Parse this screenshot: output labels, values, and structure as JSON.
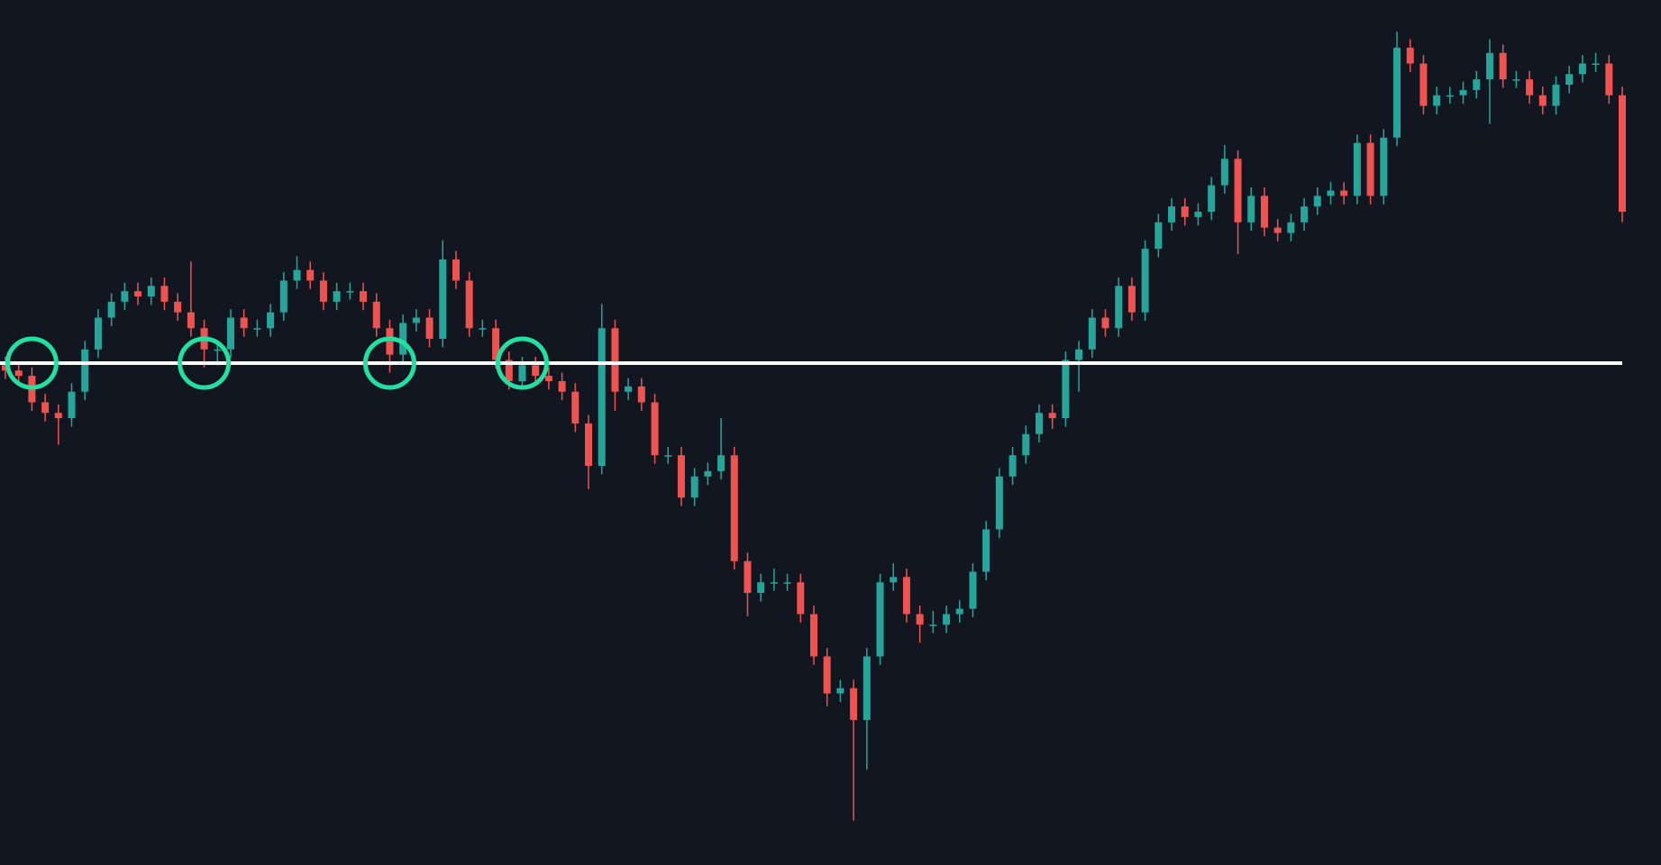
{
  "chart_data": {
    "type": "candlestick",
    "ylim": [
      0,
      817
    ],
    "up_color": "#26a69a",
    "down_color": "#ef5350",
    "level": 474,
    "level_color": "#ffffff",
    "circles": [
      2,
      15,
      29,
      39
    ],
    "circle_color": "#22e0a0",
    "open": [
      472,
      467,
      462,
      437,
      427,
      422,
      447,
      487,
      517,
      532,
      542,
      537,
      547,
      532,
      522,
      507,
      487,
      487,
      517,
      507,
      507,
      522,
      552,
      562,
      552,
      532,
      542,
      542,
      532,
      507,
      482,
      512,
      517,
      497,
      572,
      552,
      507,
      507,
      477,
      457,
      472,
      462,
      457,
      447,
      417,
      377,
      507,
      447,
      452,
      437,
      387,
      387,
      347,
      367,
      372,
      387,
      287,
      257,
      267,
      267,
      267,
      237,
      197,
      162,
      167,
      137,
      197,
      267,
      272,
      237,
      227,
      227,
      237,
      242,
      277,
      317,
      367,
      387,
      407,
      427,
      422,
      477,
      487,
      517,
      507,
      547,
      522,
      582,
      607,
      622,
      612,
      617,
      642,
      667,
      607,
      632,
      602,
      597,
      607,
      622,
      632,
      637,
      632,
      682,
      632,
      687,
      772,
      757,
      717,
      727,
      727,
      732,
      742,
      767,
      742,
      742,
      727,
      717,
      737,
      747,
      757,
      757,
      727
    ],
    "high": [
      480,
      475,
      470,
      445,
      435,
      455,
      495,
      525,
      540,
      550,
      550,
      555,
      555,
      540,
      570,
      515,
      495,
      525,
      525,
      515,
      530,
      560,
      575,
      570,
      560,
      550,
      550,
      550,
      540,
      515,
      520,
      525,
      525,
      590,
      580,
      560,
      515,
      515,
      485,
      480,
      480,
      470,
      465,
      455,
      425,
      530,
      515,
      460,
      460,
      445,
      395,
      395,
      375,
      380,
      422,
      395,
      295,
      275,
      280,
      275,
      275,
      245,
      205,
      175,
      175,
      205,
      275,
      285,
      280,
      245,
      240,
      245,
      250,
      285,
      325,
      375,
      395,
      415,
      435,
      435,
      485,
      495,
      525,
      525,
      555,
      555,
      590,
      615,
      630,
      630,
      625,
      650,
      680,
      675,
      640,
      640,
      610,
      615,
      630,
      640,
      645,
      645,
      690,
      690,
      695,
      787,
      780,
      765,
      735,
      735,
      740,
      750,
      780,
      775,
      750,
      750,
      735,
      745,
      755,
      765,
      767,
      765,
      735
    ],
    "low": [
      459,
      454,
      429,
      419,
      397,
      414,
      439,
      479,
      509,
      524,
      529,
      529,
      524,
      514,
      499,
      470,
      472,
      479,
      499,
      499,
      499,
      514,
      544,
      544,
      524,
      524,
      534,
      524,
      499,
      465,
      474,
      504,
      489,
      489,
      544,
      499,
      499,
      469,
      449,
      449,
      454,
      449,
      439,
      409,
      355,
      369,
      429,
      439,
      429,
      379,
      379,
      339,
      339,
      359,
      364,
      279,
      235,
      249,
      259,
      259,
      229,
      189,
      150,
      154,
      42,
      90,
      189,
      259,
      229,
      210,
      219,
      219,
      229,
      234,
      269,
      309,
      359,
      379,
      399,
      412,
      414,
      447,
      479,
      499,
      499,
      514,
      514,
      574,
      599,
      604,
      604,
      609,
      634,
      577,
      599,
      594,
      589,
      589,
      599,
      614,
      624,
      624,
      624,
      624,
      624,
      679,
      749,
      709,
      709,
      719,
      719,
      724,
      700,
      734,
      734,
      719,
      709,
      709,
      729,
      739,
      749,
      719,
      607
    ],
    "close": [
      467,
      462,
      437,
      427,
      422,
      447,
      487,
      517,
      532,
      542,
      537,
      547,
      532,
      522,
      507,
      487,
      487,
      517,
      507,
      507,
      522,
      552,
      562,
      552,
      532,
      542,
      542,
      532,
      507,
      482,
      512,
      517,
      497,
      572,
      552,
      507,
      507,
      477,
      457,
      472,
      462,
      457,
      447,
      417,
      377,
      507,
      447,
      452,
      437,
      387,
      387,
      347,
      367,
      372,
      387,
      287,
      257,
      267,
      267,
      267,
      237,
      197,
      162,
      167,
      137,
      197,
      267,
      272,
      237,
      227,
      227,
      237,
      242,
      277,
      317,
      367,
      387,
      407,
      427,
      422,
      477,
      487,
      517,
      507,
      547,
      522,
      582,
      607,
      622,
      612,
      617,
      642,
      667,
      607,
      632,
      602,
      597,
      607,
      622,
      632,
      637,
      632,
      682,
      632,
      687,
      772,
      757,
      717,
      727,
      727,
      732,
      742,
      767,
      742,
      742,
      727,
      717,
      737,
      747,
      757,
      757,
      727,
      617
    ]
  }
}
